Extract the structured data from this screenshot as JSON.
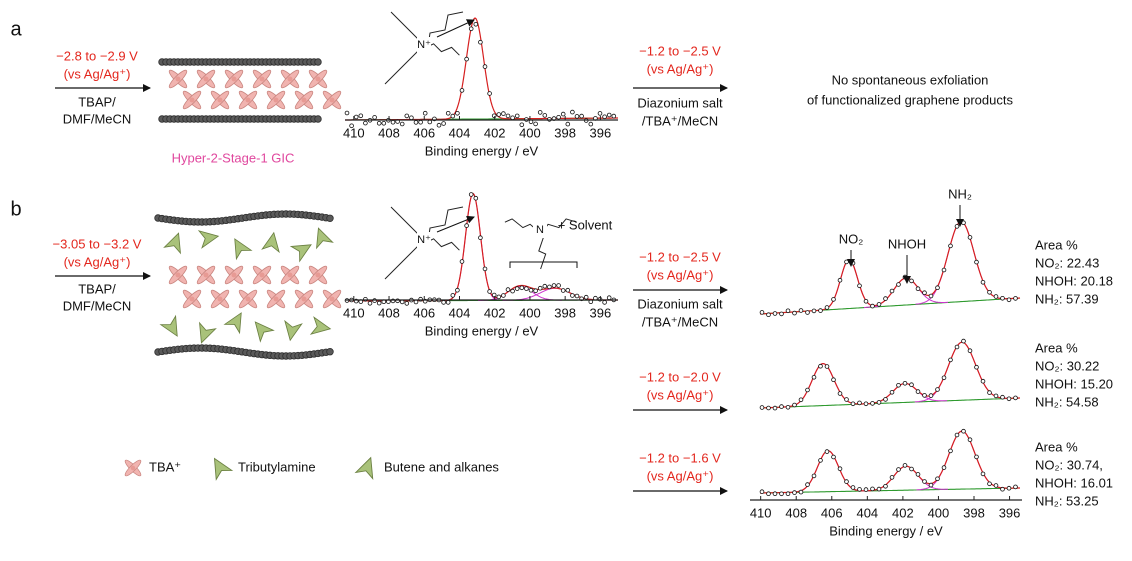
{
  "panel_a": {
    "label": "a",
    "reduction": {
      "potential": "−2.8 to −2.9 V",
      "reference": "(vs Ag/Ag⁺)",
      "electrolyte": [
        "TBAP/",
        "DMF/MeCN"
      ]
    },
    "product": "Hyper-2-Stage-1 GIC",
    "xps": {
      "ion": "N⁺",
      "xlim": [
        410.5,
        395
      ],
      "xticks": [
        410,
        408,
        406,
        404,
        402,
        400,
        398,
        396
      ],
      "xlabel": "Binding energy / eV"
    },
    "functionalization": {
      "potential": "−1.2 to −2.5 V",
      "reference": "(vs Ag/Ag⁺)",
      "reagents": [
        "Diazonium salt",
        "/TBA⁺/MeCN"
      ]
    },
    "result": [
      "No spontaneous exfoliation",
      "of functionalized graphene products"
    ]
  },
  "panel_b": {
    "label": "b",
    "reduction": {
      "potential": "−3.05 to −3.2 V",
      "reference": "(vs Ag/Ag⁺)",
      "electrolyte": [
        "TBAP/",
        "DMF/MeCN"
      ]
    },
    "legend": [
      "TBA⁺",
      "Tributylamine",
      "Butene and alkanes"
    ],
    "xps": {
      "ion": "N⁺",
      "amine": "N",
      "annotation": "+ Solvent",
      "xlim": [
        410.5,
        395
      ],
      "xticks": [
        410,
        408,
        406,
        404,
        402,
        400,
        398,
        396
      ],
      "xlabel": "Binding energy / eV"
    },
    "functionalization": [
      {
        "potential": "−1.2 to −2.5 V",
        "reference": "(vs Ag/Ag⁺)",
        "reagents": [
          "Diazonium salt",
          "/TBA⁺/MeCN"
        ]
      },
      {
        "potential": "−1.2 to −2.0 V",
        "reference": "(vs Ag/Ag⁺)"
      },
      {
        "potential": "−1.2 to −1.6 V",
        "reference": "(vs Ag/Ag⁺)"
      }
    ],
    "peak_labels": [
      "NO₂",
      "NHOH",
      "NH₂"
    ],
    "areas": [
      {
        "title": "Area %",
        "lines": [
          "NO₂: 22.43",
          "NHOH: 20.18",
          "NH₂: 57.39"
        ]
      },
      {
        "title": "Area %",
        "lines": [
          "NO₂: 30.22",
          "NHOH: 15.20",
          "NH₂: 54.58"
        ]
      },
      {
        "title": "Area %",
        "lines": [
          "NO₂: 30.74,",
          "NHOH: 16.01",
          "NH₂: 53.25"
        ]
      }
    ],
    "xps_products": {
      "xlim": [
        410.6,
        395.3
      ],
      "xticks": [
        410,
        408,
        406,
        404,
        402,
        400,
        398,
        396
      ],
      "xlabel": "Binding energy / eV"
    }
  }
}
